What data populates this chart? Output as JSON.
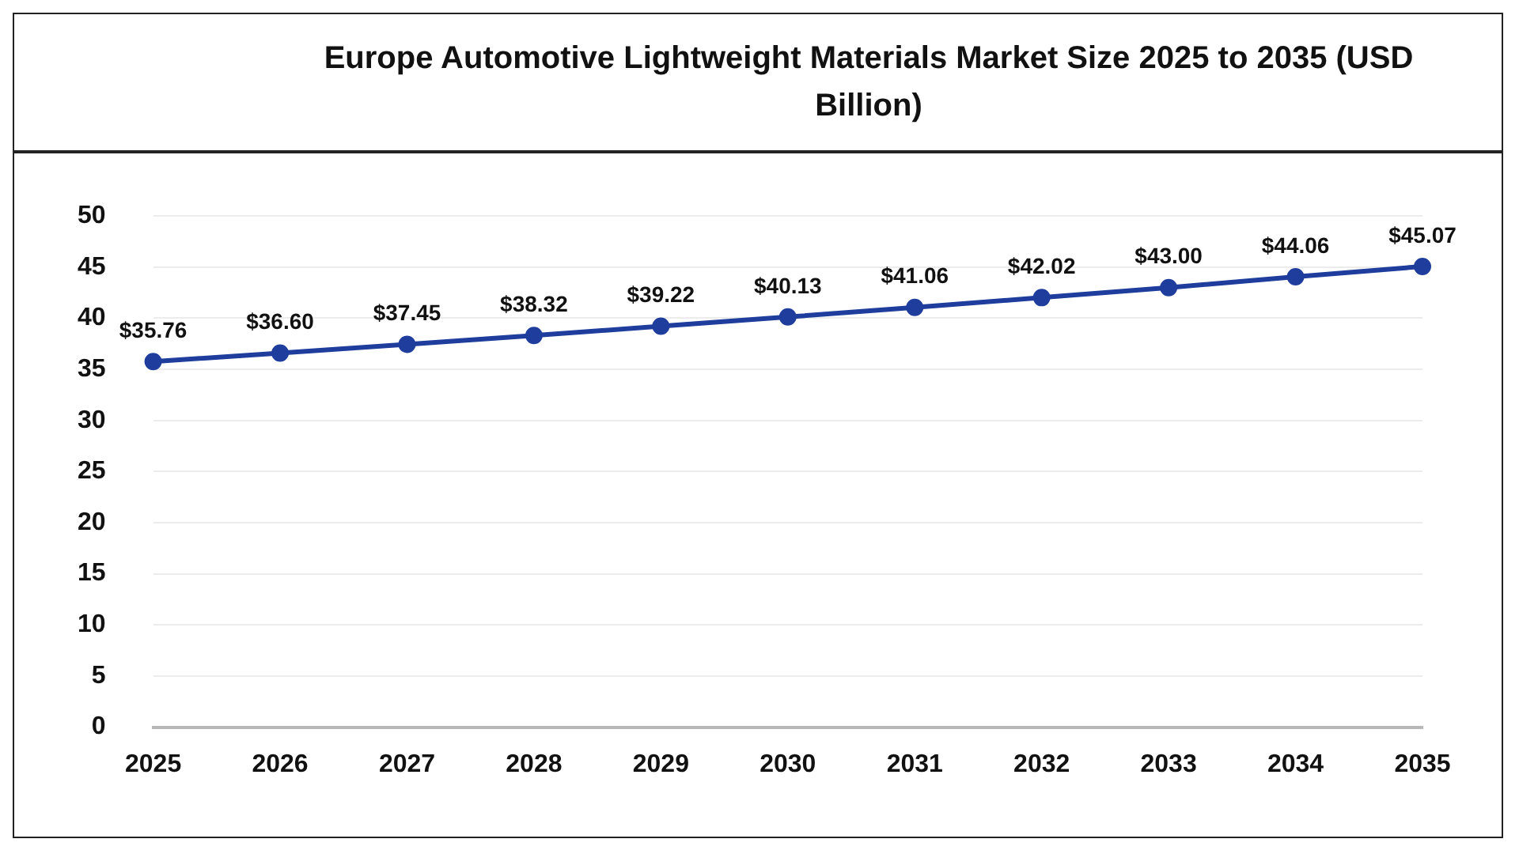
{
  "chart_data": {
    "type": "line",
    "title": "Europe Automotive Lightweight Materials Market Size 2025 to 2035 (USD Billion)",
    "categories": [
      "2025",
      "2026",
      "2027",
      "2028",
      "2029",
      "2030",
      "2031",
      "2032",
      "2033",
      "2034",
      "2035"
    ],
    "values": [
      35.76,
      36.6,
      37.45,
      38.32,
      39.22,
      40.13,
      41.06,
      42.02,
      43.0,
      44.06,
      45.07
    ],
    "value_labels": [
      "$35.76",
      "$36.60",
      "$37.45",
      "$38.32",
      "$39.22",
      "$40.13",
      "$41.06",
      "$42.02",
      "$43.00",
      "$44.06",
      "$45.07"
    ],
    "color": "#1f3d9c",
    "ylim": [
      0,
      50
    ],
    "yticks": [
      0,
      5,
      10,
      15,
      20,
      25,
      30,
      35,
      40,
      45,
      50
    ],
    "grid": "y",
    "marker": "circle",
    "line_style": "solid",
    "legend": false
  }
}
